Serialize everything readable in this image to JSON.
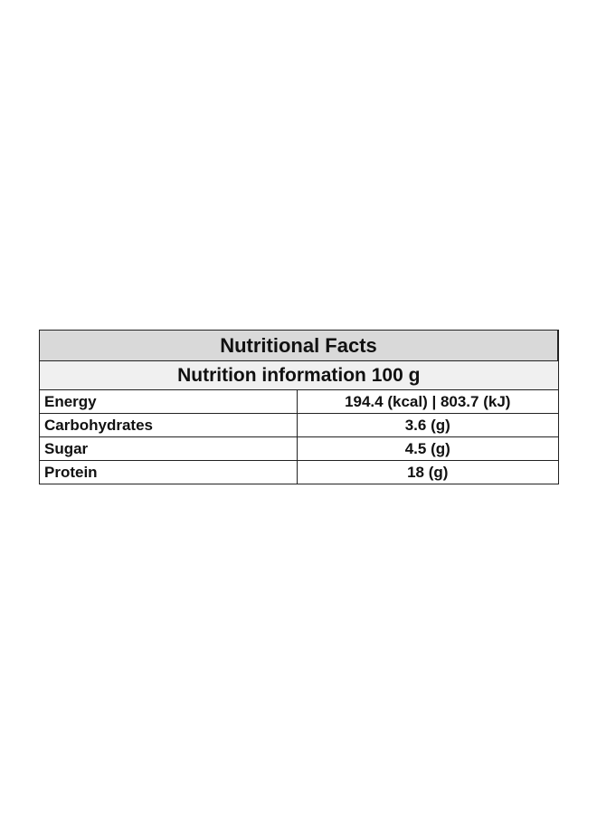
{
  "table": {
    "title": "Nutritional Facts",
    "subtitle": "Nutrition information 100 g",
    "rows": [
      [
        "Energy",
        "194.4 (kcal) | 803.7 (kJ)"
      ],
      [
        "Carbohydrates",
        "3.6 (g)"
      ],
      [
        "Sugar",
        "4.5 (g)"
      ],
      [
        "Protein",
        "18 (g)"
      ]
    ]
  }
}
